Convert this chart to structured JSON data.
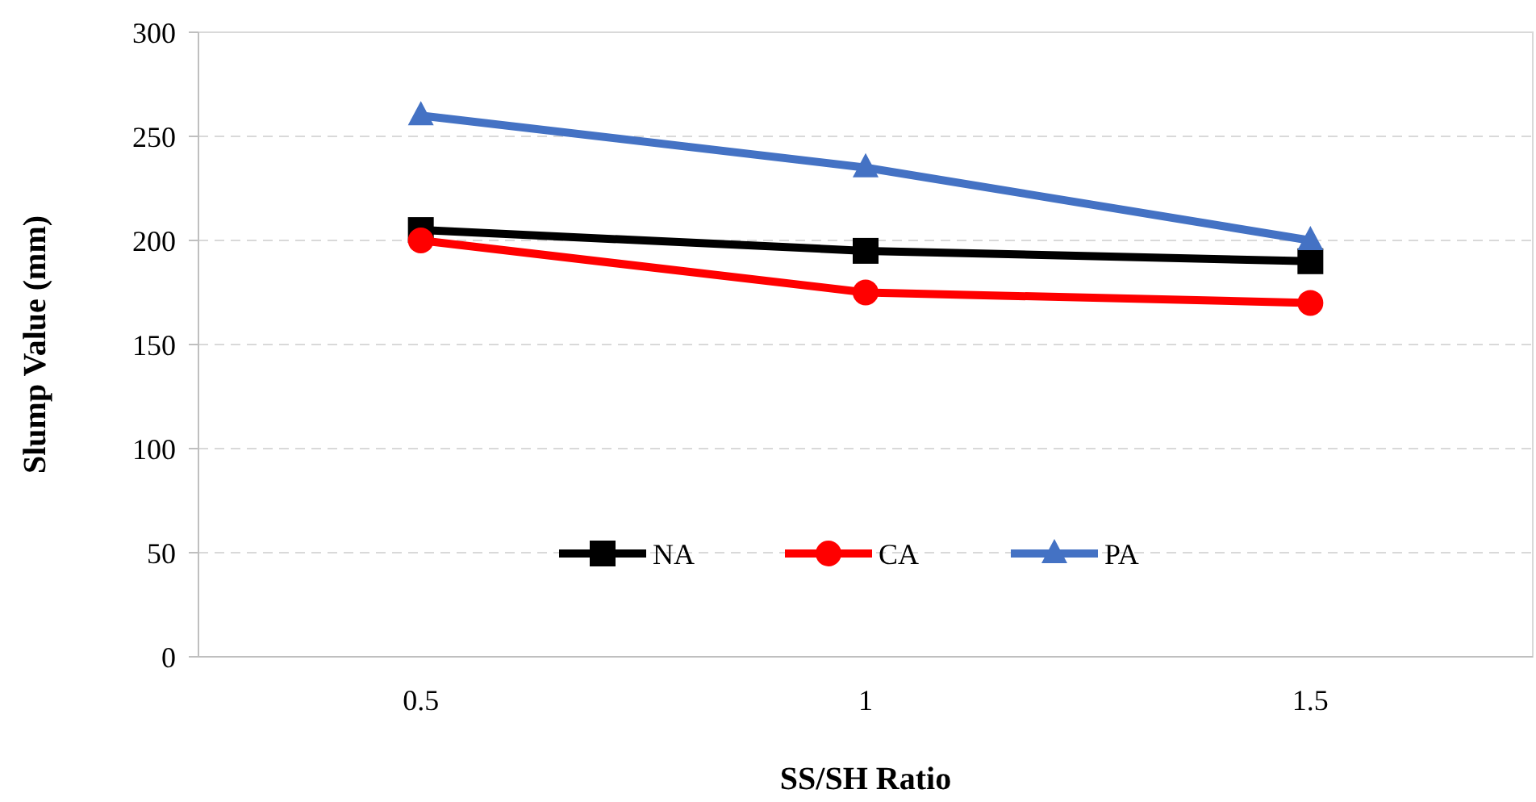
{
  "chart_data": {
    "type": "line",
    "xlabel": "SS/SH Ratio",
    "ylabel": "Slump Value (mm)",
    "categories": [
      "0.5",
      "1",
      "1.5"
    ],
    "series": [
      {
        "name": "NA",
        "color": "#000000",
        "values": [
          205,
          195,
          190
        ],
        "marker": "square"
      },
      {
        "name": "CA",
        "color": "#ff0000",
        "values": [
          200,
          175,
          170
        ],
        "marker": "circle"
      },
      {
        "name": "PA",
        "color": "#4472c4",
        "values": [
          260,
          235,
          200
        ],
        "marker": "triangle"
      }
    ],
    "ylim": [
      0,
      300
    ],
    "yticks": [
      0,
      50,
      100,
      150,
      200,
      250,
      300
    ],
    "grid": "y",
    "legend": "bottom",
    "line_style": "solid"
  }
}
